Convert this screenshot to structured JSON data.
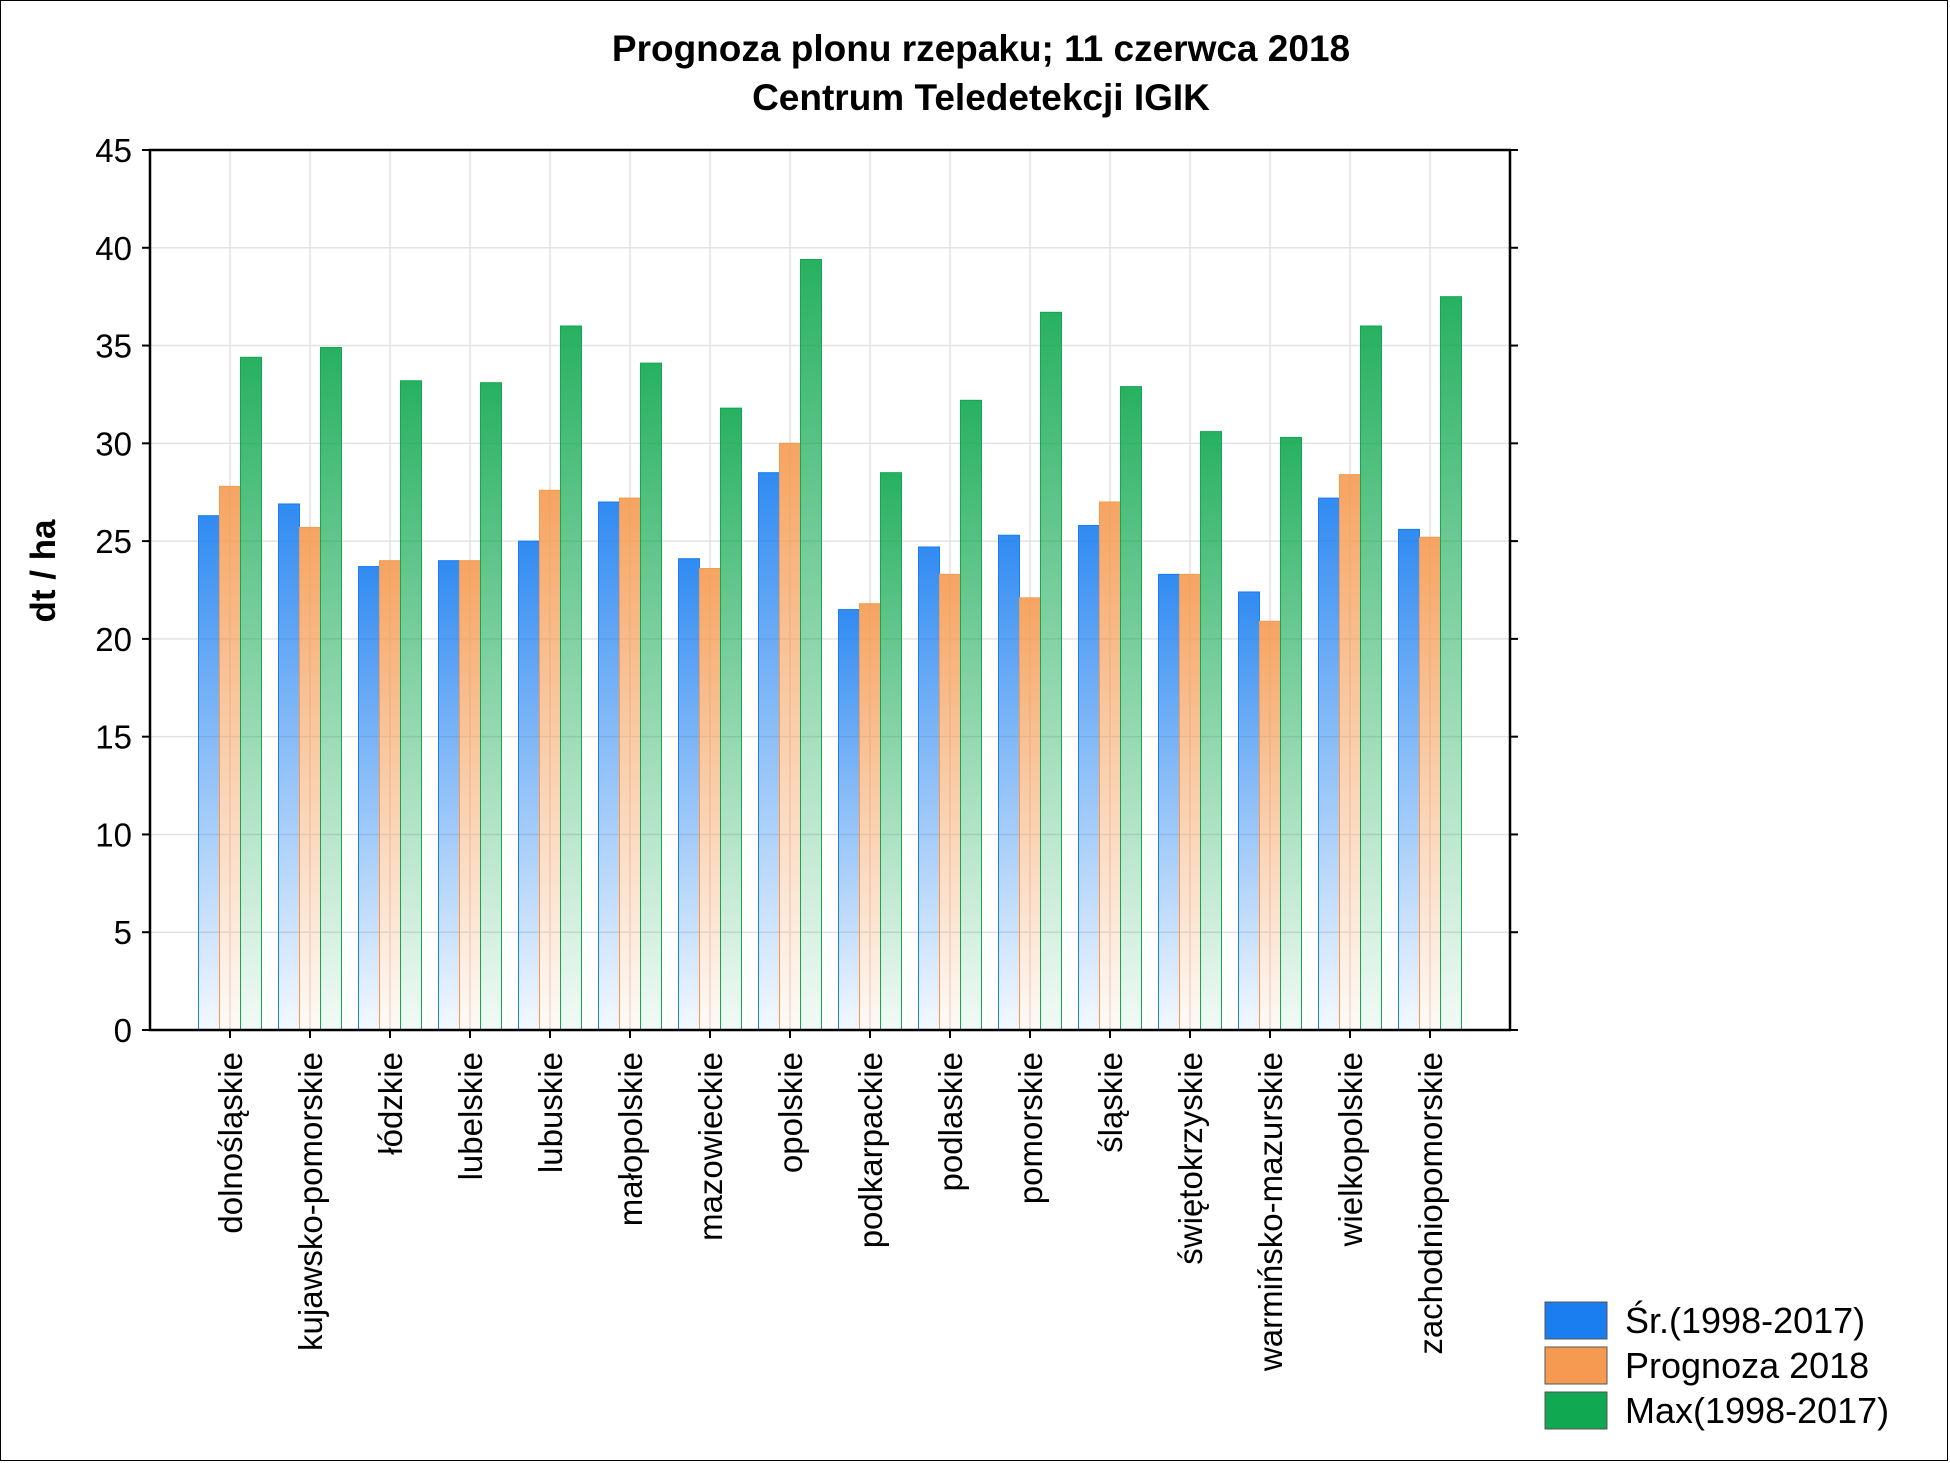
{
  "chart_data": {
    "type": "bar",
    "title": "Prognoza plonu rzepaku; 11 czerwca 2018",
    "subtitle": "Centrum Teledetekcji IGIK",
    "xlabel": "",
    "ylabel": "dt / ha",
    "ylim": [
      0,
      45
    ],
    "yticks": [
      0,
      5,
      10,
      15,
      20,
      25,
      30,
      35,
      40,
      45
    ],
    "grid": true,
    "legend_position": "bottom-right",
    "categories": [
      "dolnośląskie",
      "kujawsko-pomorskie",
      "łódzkie",
      "lubelskie",
      "lubuskie",
      "małopolskie",
      "mazowieckie",
      "opolskie",
      "podkarpackie",
      "podlaskie",
      "pomorskie",
      "śląskie",
      "świętokrzyskie",
      "warmińsko-mazurskie",
      "wielkopolskie",
      "zachodniopomorskie"
    ],
    "series": [
      {
        "name": "Śr.(1998-2017)",
        "color": "#1a7ef0",
        "values": [
          26.3,
          26.9,
          23.7,
          24.0,
          25.0,
          27.0,
          24.1,
          28.5,
          21.5,
          24.7,
          25.3,
          25.8,
          23.3,
          22.4,
          27.2,
          25.6
        ]
      },
      {
        "name": "Prognoza 2018",
        "color": "#f59a50",
        "values": [
          27.8,
          25.7,
          24.0,
          24.0,
          27.6,
          27.2,
          23.6,
          30.0,
          21.8,
          23.3,
          22.1,
          27.0,
          23.3,
          20.9,
          28.4,
          25.2
        ]
      },
      {
        "name": "Max(1998-2017)",
        "color": "#10a850",
        "values": [
          34.4,
          34.9,
          33.2,
          33.1,
          36.0,
          34.1,
          31.8,
          39.4,
          28.5,
          32.2,
          36.7,
          32.9,
          30.6,
          30.3,
          36.0,
          37.5
        ]
      }
    ]
  }
}
